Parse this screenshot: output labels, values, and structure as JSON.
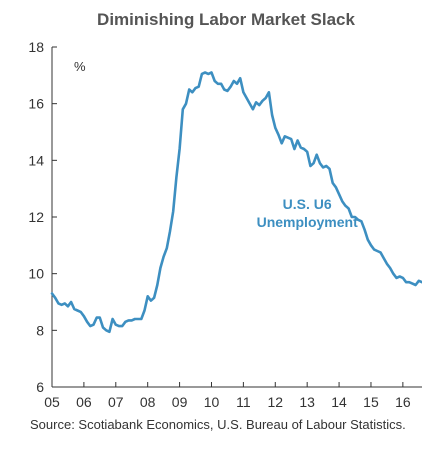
{
  "chart_data": {
    "type": "line",
    "title": "Diminishing Labor Market Slack",
    "ylabel": "%",
    "ylim": [
      6,
      18
    ],
    "yticks": [
      6,
      8,
      10,
      12,
      14,
      16,
      18
    ],
    "xlim": [
      2005,
      2016.6
    ],
    "xticks": [
      {
        "value": 2005,
        "label": "05"
      },
      {
        "value": 2006,
        "label": "06"
      },
      {
        "value": 2007,
        "label": "07"
      },
      {
        "value": 2008,
        "label": "08"
      },
      {
        "value": 2009,
        "label": "09"
      },
      {
        "value": 2010,
        "label": "10"
      },
      {
        "value": 2011,
        "label": "11"
      },
      {
        "value": 2012,
        "label": "12"
      },
      {
        "value": 2013,
        "label": "13"
      },
      {
        "value": 2014,
        "label": "14"
      },
      {
        "value": 2015,
        "label": "15"
      },
      {
        "value": 2016,
        "label": "16"
      }
    ],
    "grid": false,
    "series": [
      {
        "name": "U.S. U6 Unemployment",
        "color": "#3d8fc1",
        "points": [
          [
            2005.0,
            9.3
          ],
          [
            2005.1,
            9.15
          ],
          [
            2005.2,
            8.95
          ],
          [
            2005.3,
            8.9
          ],
          [
            2005.4,
            8.95
          ],
          [
            2005.5,
            8.85
          ],
          [
            2005.6,
            9.0
          ],
          [
            2005.7,
            8.75
          ],
          [
            2005.8,
            8.7
          ],
          [
            2005.9,
            8.65
          ],
          [
            2006.0,
            8.5
          ],
          [
            2006.1,
            8.3
          ],
          [
            2006.2,
            8.15
          ],
          [
            2006.3,
            8.2
          ],
          [
            2006.4,
            8.45
          ],
          [
            2006.5,
            8.45
          ],
          [
            2006.6,
            8.1
          ],
          [
            2006.7,
            8.0
          ],
          [
            2006.8,
            7.95
          ],
          [
            2006.9,
            8.4
          ],
          [
            2007.0,
            8.2
          ],
          [
            2007.1,
            8.15
          ],
          [
            2007.2,
            8.15
          ],
          [
            2007.3,
            8.3
          ],
          [
            2007.4,
            8.35
          ],
          [
            2007.5,
            8.35
          ],
          [
            2007.6,
            8.4
          ],
          [
            2007.7,
            8.4
          ],
          [
            2007.8,
            8.4
          ],
          [
            2007.9,
            8.7
          ],
          [
            2008.0,
            9.2
          ],
          [
            2008.1,
            9.05
          ],
          [
            2008.2,
            9.15
          ],
          [
            2008.3,
            9.6
          ],
          [
            2008.4,
            10.2
          ],
          [
            2008.5,
            10.6
          ],
          [
            2008.6,
            10.9
          ],
          [
            2008.7,
            11.5
          ],
          [
            2008.8,
            12.2
          ],
          [
            2008.9,
            13.4
          ],
          [
            2009.0,
            14.4
          ],
          [
            2009.1,
            15.8
          ],
          [
            2009.2,
            16.0
          ],
          [
            2009.3,
            16.5
          ],
          [
            2009.4,
            16.4
          ],
          [
            2009.5,
            16.55
          ],
          [
            2009.6,
            16.6
          ],
          [
            2009.7,
            17.05
          ],
          [
            2009.8,
            17.1
          ],
          [
            2009.9,
            17.05
          ],
          [
            2010.0,
            17.1
          ],
          [
            2010.1,
            16.8
          ],
          [
            2010.2,
            16.7
          ],
          [
            2010.3,
            16.7
          ],
          [
            2010.4,
            16.5
          ],
          [
            2010.5,
            16.45
          ],
          [
            2010.6,
            16.6
          ],
          [
            2010.7,
            16.8
          ],
          [
            2010.8,
            16.7
          ],
          [
            2010.9,
            16.9
          ],
          [
            2011.0,
            16.4
          ],
          [
            2011.1,
            16.2
          ],
          [
            2011.2,
            16.0
          ],
          [
            2011.3,
            15.8
          ],
          [
            2011.4,
            16.05
          ],
          [
            2011.5,
            15.95
          ],
          [
            2011.6,
            16.1
          ],
          [
            2011.7,
            16.2
          ],
          [
            2011.8,
            16.4
          ],
          [
            2011.9,
            15.6
          ],
          [
            2012.0,
            15.15
          ],
          [
            2012.1,
            14.9
          ],
          [
            2012.2,
            14.6
          ],
          [
            2012.3,
            14.85
          ],
          [
            2012.4,
            14.8
          ],
          [
            2012.5,
            14.75
          ],
          [
            2012.6,
            14.4
          ],
          [
            2012.7,
            14.7
          ],
          [
            2012.8,
            14.45
          ],
          [
            2012.9,
            14.4
          ],
          [
            2013.0,
            14.3
          ],
          [
            2013.1,
            13.8
          ],
          [
            2013.2,
            13.9
          ],
          [
            2013.3,
            14.2
          ],
          [
            2013.4,
            13.9
          ],
          [
            2013.5,
            13.75
          ],
          [
            2013.6,
            13.8
          ],
          [
            2013.7,
            13.7
          ],
          [
            2013.8,
            13.2
          ],
          [
            2013.9,
            13.05
          ],
          [
            2014.0,
            12.8
          ],
          [
            2014.1,
            12.55
          ],
          [
            2014.2,
            12.4
          ],
          [
            2014.3,
            12.3
          ],
          [
            2014.4,
            12.0
          ],
          [
            2014.5,
            12.0
          ],
          [
            2014.6,
            11.9
          ],
          [
            2014.7,
            11.85
          ],
          [
            2014.8,
            11.55
          ],
          [
            2014.9,
            11.2
          ],
          [
            2015.0,
            11.0
          ],
          [
            2015.1,
            10.85
          ],
          [
            2015.2,
            10.8
          ],
          [
            2015.3,
            10.75
          ],
          [
            2015.4,
            10.55
          ],
          [
            2015.5,
            10.35
          ],
          [
            2015.6,
            10.2
          ],
          [
            2015.7,
            10.0
          ],
          [
            2015.8,
            9.85
          ],
          [
            2015.9,
            9.9
          ],
          [
            2016.0,
            9.85
          ],
          [
            2016.1,
            9.7
          ],
          [
            2016.2,
            9.7
          ],
          [
            2016.3,
            9.65
          ],
          [
            2016.4,
            9.6
          ],
          [
            2016.5,
            9.75
          ],
          [
            2016.6,
            9.7
          ]
        ]
      }
    ],
    "annotation": {
      "line1": "U.S. U6",
      "line2": "Unemployment",
      "x": 2013.0,
      "y": 12.0
    }
  },
  "source": "Source: Scotiabank Economics, U.S. Bureau of Labour Statistics."
}
